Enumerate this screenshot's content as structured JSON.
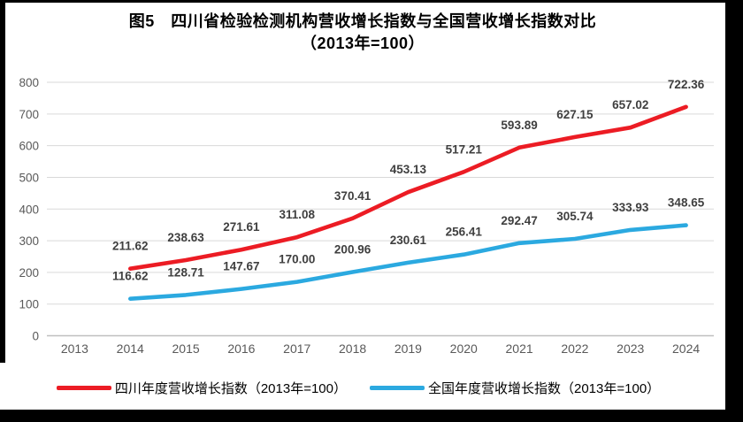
{
  "title": {
    "line1": "图5　四川省检验检测机构营收增长指数与全国营收增长指数对比",
    "line2": "（2013年=100）"
  },
  "chart_data": {
    "type": "line",
    "categories": [
      "2013",
      "2014",
      "2015",
      "2016",
      "2017",
      "2018",
      "2019",
      "2020",
      "2021",
      "2022",
      "2023",
      "2024"
    ],
    "series": [
      {
        "key": "sichuan",
        "name": "四川年度营收增长指数（2013年=100）",
        "color": "#EC1C24",
        "start_index": 1,
        "values": [
          211.62,
          238.63,
          271.61,
          311.08,
          370.41,
          453.13,
          517.21,
          593.89,
          627.15,
          657.02,
          722.36
        ]
      },
      {
        "key": "national",
        "name": "全国年度营收增长指数（2013年=100）",
        "color": "#2BA9E0",
        "start_index": 1,
        "values": [
          116.62,
          128.71,
          147.67,
          170.0,
          200.96,
          230.61,
          256.41,
          292.47,
          305.74,
          333.93,
          348.65
        ]
      }
    ],
    "ylim": [
      0,
      800
    ],
    "ytick_step": 100,
    "yticks": [
      "0",
      "100",
      "200",
      "300",
      "400",
      "500",
      "600",
      "700",
      "800"
    ],
    "grid": true,
    "legend_position": "bottom",
    "data_labels": true
  },
  "colors": {
    "grid": "#D9D9D9",
    "axis": "#BFBFBF",
    "axis_label": "#595959",
    "data_label": "#3F3F3F",
    "frame": "#000000",
    "background": "#FFFFFF"
  }
}
